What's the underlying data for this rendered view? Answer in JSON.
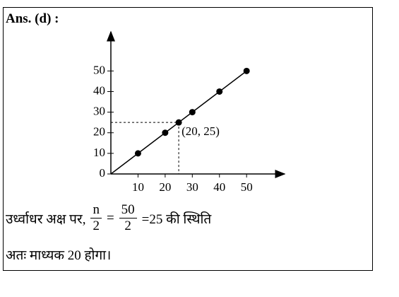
{
  "answer": "Ans. (d) :",
  "chart": {
    "type": "line",
    "x": [
      10,
      20,
      25,
      30,
      40,
      50
    ],
    "y": [
      10,
      20,
      25,
      30,
      40,
      50
    ],
    "xlim": [
      0,
      64
    ],
    "ylim": [
      0,
      69
    ],
    "xticks": [
      10,
      20,
      30,
      40,
      50
    ],
    "yticks": [
      0,
      10,
      20,
      30,
      40,
      50
    ],
    "annotation": {
      "text": "(20, 25)",
      "x": 25,
      "y": 25
    },
    "color": "#000000"
  },
  "text": {
    "lead": "उर्ध्वाधर अक्ष पर,",
    "fraction1": {
      "num": "n",
      "den": "2"
    },
    "equals": "=",
    "fraction2": {
      "num": "50",
      "den": "2"
    },
    "tail": "=25 की स्थिति",
    "conclusion": "अतः माध्यक 20 होगा।"
  }
}
